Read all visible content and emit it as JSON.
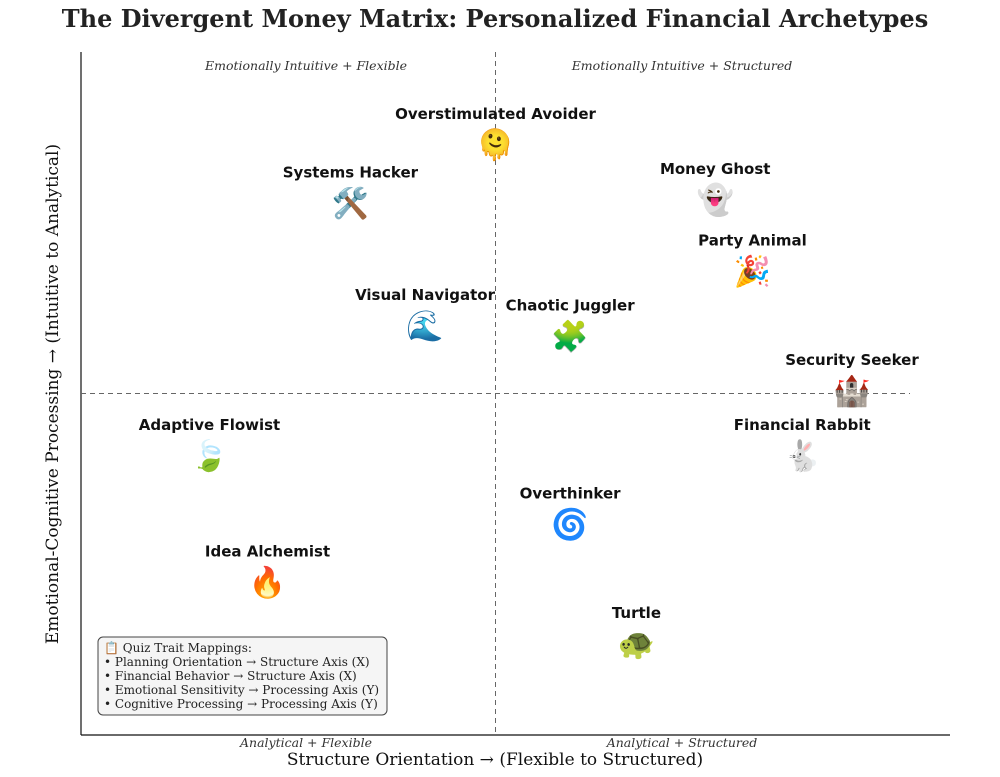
{
  "chart_data": {
    "type": "scatter",
    "title": "The Divergent Money Matrix: Personalized Financial Archetypes",
    "xlabel": "Structure Orientation → (Flexible to Structured)",
    "ylabel": "Emotional-Cognitive Processing → (Intuitive to Analytical)",
    "xlim": [
      -10,
      10
    ],
    "ylim": [
      -10,
      10
    ],
    "grid": false,
    "quadrant_labels": {
      "top_left": "Emotionally Intuitive + Flexible",
      "top_right": "Emotionally Intuitive + Structured",
      "bottom_left": "Analytical + Flexible",
      "bottom_right": "Analytical + Structured"
    },
    "points": [
      {
        "label": "Overstimulated Avoider",
        "icon": "🫠",
        "icon_name": "melting-face-icon",
        "x": 0.0,
        "y": 7.3
      },
      {
        "label": "Systems Hacker",
        "icon": "🛠️",
        "icon_name": "tools-icon",
        "x": -3.5,
        "y": 5.6
      },
      {
        "label": "Money Ghost",
        "icon": "👻",
        "icon_name": "ghost-icon",
        "x": 5.3,
        "y": 5.7
      },
      {
        "label": "Party Animal",
        "icon": "🎉",
        "icon_name": "party-popper-icon",
        "x": 6.2,
        "y": 3.6
      },
      {
        "label": "Visual Navigator",
        "icon": "🌊",
        "icon_name": "wave-icon",
        "x": -1.7,
        "y": 2.0
      },
      {
        "label": "Chaotic Juggler",
        "icon": "🧩",
        "icon_name": "puzzle-icon",
        "x": 1.8,
        "y": 1.7
      },
      {
        "label": "Security Seeker",
        "icon": "🏰",
        "icon_name": "castle-icon",
        "x": 8.6,
        "y": 0.1
      },
      {
        "label": "Adaptive Flowist",
        "icon": "🍃",
        "icon_name": "leaf-icon",
        "x": -6.9,
        "y": -1.8
      },
      {
        "label": "Financial Rabbit",
        "icon": "🐇",
        "icon_name": "rabbit-icon",
        "x": 7.4,
        "y": -1.8
      },
      {
        "label": "Overthinker",
        "icon": "🌀",
        "icon_name": "cyclone-icon",
        "x": 1.8,
        "y": -3.8
      },
      {
        "label": "Idea Alchemist",
        "icon": "🔥",
        "icon_name": "fire-icon",
        "x": -5.5,
        "y": -5.5
      },
      {
        "label": "Turtle",
        "icon": "🐢",
        "icon_name": "turtle-icon",
        "x": 3.4,
        "y": -7.3
      }
    ],
    "legend": {
      "placement": "bottom-left",
      "lines": [
        "📋 Quiz Trait Mappings:",
        "• Planning Orientation → Structure Axis (X)",
        "• Financial Behavior → Structure Axis (X)",
        "• Emotional Sensitivity → Processing Axis (Y)",
        "• Cognitive Processing → Processing Axis (Y)"
      ]
    }
  }
}
